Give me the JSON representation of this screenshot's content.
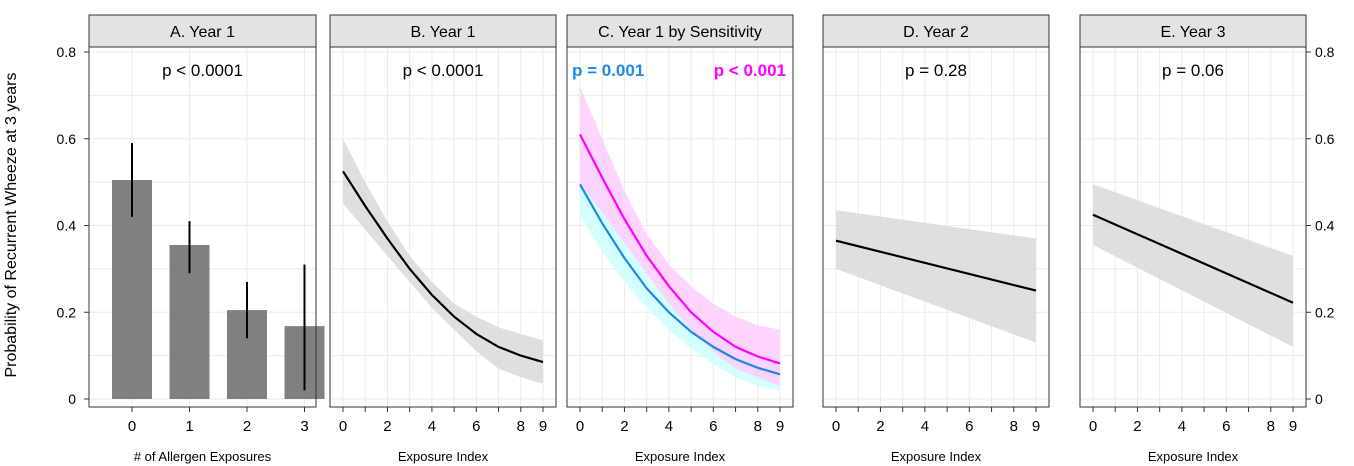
{
  "figure": {
    "ylabel": "Probability of Recurrent Wheeze at 3 years",
    "y_ticks": [
      "0",
      "0.2",
      "0.4",
      "0.6",
      "0.8"
    ]
  },
  "chart_data": [
    {
      "type": "bar",
      "title": "A. Year 1",
      "annotation": "p < 0.0001",
      "xlabel": "# of Allergen Exposures",
      "ylabel": "Probability of Recurrent Wheeze at 3 years",
      "categories": [
        "0",
        "1",
        "2",
        "3"
      ],
      "values": [
        0.505,
        0.355,
        0.205,
        0.168
      ],
      "ci_lower": [
        0.42,
        0.29,
        0.14,
        0.02
      ],
      "ci_upper": [
        0.59,
        0.41,
        0.27,
        0.31
      ],
      "ylim": [
        0,
        0.8
      ],
      "bar_color": "#808080"
    },
    {
      "type": "line",
      "title": "B. Year 1",
      "annotation": "p < 0.0001",
      "xlabel": "Exposure Index",
      "x_ticks": [
        "0",
        "2",
        "4",
        "6",
        "8",
        "9"
      ],
      "xlim": [
        0,
        9
      ],
      "ylim": [
        0,
        0.8
      ],
      "series": [
        {
          "color": "#000000",
          "band_color": "#d9d9d9",
          "x": [
            0,
            1,
            2,
            3,
            4,
            5,
            6,
            7,
            8,
            9
          ],
          "y": [
            0.525,
            0.445,
            0.37,
            0.3,
            0.24,
            0.19,
            0.15,
            0.12,
            0.1,
            0.085
          ],
          "lower": [
            0.45,
            0.39,
            0.33,
            0.27,
            0.21,
            0.16,
            0.11,
            0.07,
            0.05,
            0.035
          ],
          "upper": [
            0.6,
            0.5,
            0.41,
            0.33,
            0.27,
            0.22,
            0.19,
            0.165,
            0.15,
            0.135
          ]
        }
      ]
    },
    {
      "type": "line",
      "title": "C. Year 1 by Sensitivity",
      "xlabel": "Exposure Index",
      "x_ticks": [
        "0",
        "2",
        "4",
        "6",
        "8",
        "9"
      ],
      "xlim": [
        0,
        9
      ],
      "ylim": [
        0,
        0.8
      ],
      "annotations": [
        {
          "text": "p = 0.001",
          "color": "#1e88e5"
        },
        {
          "text": "p < 0.001",
          "color": "#ff00ff"
        }
      ],
      "series": [
        {
          "color": "#1e88e5",
          "band_color": "#ccffff",
          "x": [
            0,
            1,
            2,
            3,
            4,
            5,
            6,
            7,
            8,
            9
          ],
          "y": [
            0.495,
            0.405,
            0.325,
            0.255,
            0.2,
            0.155,
            0.12,
            0.092,
            0.072,
            0.057
          ],
          "lower": [
            0.42,
            0.34,
            0.27,
            0.21,
            0.16,
            0.115,
            0.08,
            0.05,
            0.03,
            0.02
          ],
          "upper": [
            0.57,
            0.47,
            0.38,
            0.3,
            0.24,
            0.19,
            0.16,
            0.135,
            0.115,
            0.1
          ]
        },
        {
          "color": "#ff00ff",
          "band_color": "#ffccff",
          "x": [
            0,
            1,
            2,
            3,
            4,
            5,
            6,
            7,
            8,
            9
          ],
          "y": [
            0.61,
            0.51,
            0.415,
            0.33,
            0.26,
            0.2,
            0.155,
            0.12,
            0.098,
            0.082
          ],
          "lower": [
            0.5,
            0.43,
            0.36,
            0.29,
            0.22,
            0.16,
            0.11,
            0.07,
            0.05,
            0.03
          ],
          "upper": [
            0.72,
            0.6,
            0.48,
            0.38,
            0.31,
            0.26,
            0.22,
            0.19,
            0.17,
            0.16
          ]
        }
      ]
    },
    {
      "type": "line",
      "title": "D. Year 2",
      "annotation": "p = 0.28",
      "xlabel": "Exposure Index",
      "x_ticks": [
        "0",
        "2",
        "4",
        "6",
        "8",
        "9"
      ],
      "xlim": [
        0,
        9
      ],
      "ylim": [
        0,
        0.8
      ],
      "series": [
        {
          "color": "#000000",
          "band_color": "#d9d9d9",
          "x": [
            0,
            9
          ],
          "y": [
            0.365,
            0.25
          ],
          "lower": [
            0.3,
            0.13
          ],
          "upper": [
            0.435,
            0.37
          ]
        }
      ]
    },
    {
      "type": "line",
      "title": "E. Year 3",
      "annotation": "p = 0.06",
      "xlabel": "Exposure Index",
      "x_ticks": [
        "0",
        "2",
        "4",
        "6",
        "8",
        "9"
      ],
      "xlim": [
        0,
        9
      ],
      "ylim": [
        0,
        0.8
      ],
      "series": [
        {
          "color": "#000000",
          "band_color": "#d9d9d9",
          "x": [
            0,
            9
          ],
          "y": [
            0.425,
            0.222
          ],
          "lower": [
            0.355,
            0.12
          ],
          "upper": [
            0.495,
            0.33
          ]
        }
      ]
    }
  ]
}
